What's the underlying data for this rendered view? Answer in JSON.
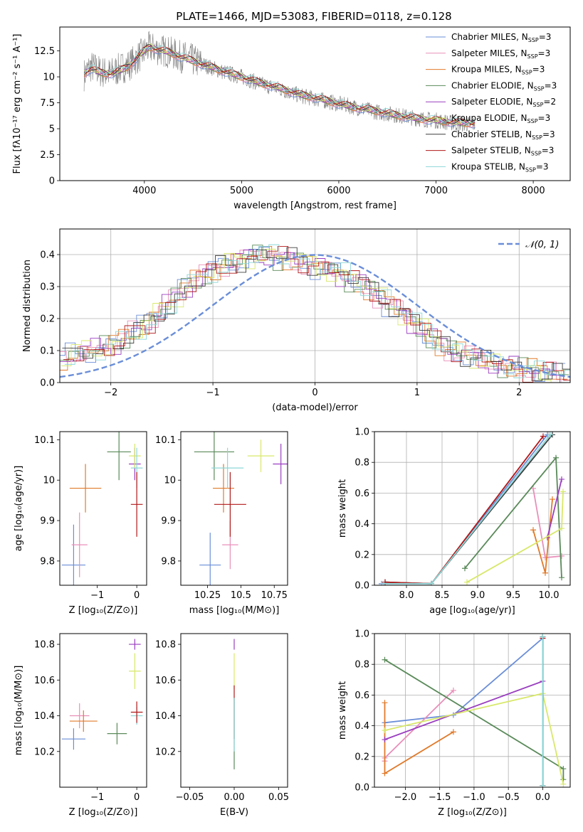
{
  "figure_title": "PLATE=1466, MJD=53083, FIBERID=0118, z=0.128",
  "colors": {
    "series": [
      "#6a8ed8",
      "#e88fb9",
      "#e07a2a",
      "#5a8a5a",
      "#9a3fbf",
      "#d8e86a",
      "#3c3c3c",
      "#b01818",
      "#8ed6d6"
    ],
    "data": "#808080",
    "normal": "#6a8ed8",
    "grid": "#b0b0b0"
  },
  "chart_data": [
    {
      "type": "line",
      "title": "PLATE=1466, MJD=53083, FIBERID=0118, z=0.128",
      "xlabel": "wavelength [Angstrom, rest frame]",
      "ylabel": "Flux [fλ10⁻¹⁷ erg cm⁻² s⁻¹ A⁻¹]",
      "xlim": [
        3130,
        8380
      ],
      "ylim": [
        0,
        14.8
      ],
      "xticks": [
        4000,
        5000,
        6000,
        7000,
        8000
      ],
      "yticks": [
        0.0,
        2.5,
        5.0,
        7.5,
        10.0,
        12.5
      ],
      "grid": false,
      "legend_position": "top-right",
      "legend": [
        {
          "name": "Chabrier MILES, N",
          "sub": "SSP",
          "suffix": "=3"
        },
        {
          "name": "Salpeter MILES, N",
          "sub": "SSP",
          "suffix": "=3"
        },
        {
          "name": "Kroupa MILES, N",
          "sub": "SSP",
          "suffix": "=3"
        },
        {
          "name": "Chabrier ELODIE, N",
          "sub": "SSP",
          "suffix": "=3"
        },
        {
          "name": "Salpeter ELODIE, N",
          "sub": "SSP",
          "suffix": "=2"
        },
        {
          "name": "Kroupa ELODIE, N",
          "sub": "SSP",
          "suffix": "=3"
        },
        {
          "name": "Chabrier STELIB, N",
          "sub": "SSP",
          "suffix": "=3"
        },
        {
          "name": "Salpeter STELIB, N",
          "sub": "SSP",
          "suffix": "=3"
        },
        {
          "name": "Kroupa STELIB, N",
          "sub": "SSP",
          "suffix": "=3"
        }
      ],
      "data_spectrum": {
        "x": [
          3380,
          3450,
          3550,
          3650,
          3750,
          3850,
          3950,
          4050,
          4150,
          4250,
          4350,
          4450,
          4600,
          4800,
          5000,
          5200,
          5400,
          5600,
          5800,
          6000,
          6200,
          6400,
          6600,
          6800,
          7000,
          7200,
          7400
        ],
        "y": [
          10.2,
          11.0,
          10.5,
          10.3,
          10.8,
          11.2,
          12.0,
          12.8,
          12.6,
          12.4,
          12.0,
          11.8,
          11.2,
          10.5,
          10.0,
          9.3,
          8.8,
          8.2,
          7.8,
          7.4,
          7.0,
          6.6,
          6.3,
          6.0,
          5.8,
          5.5,
          5.4
        ]
      },
      "model_spectrum": {
        "x": [
          3380,
          3450,
          3550,
          3650,
          3750,
          3850,
          3950,
          4050,
          4150,
          4250,
          4350,
          4450,
          4600,
          4800,
          5000,
          5200,
          5400,
          5600,
          5800,
          6000,
          6200,
          6400,
          6600,
          6800,
          7000,
          7200,
          7400
        ],
        "y": [
          10.3,
          10.8,
          10.4,
          10.3,
          10.6,
          11.1,
          12.1,
          12.9,
          12.6,
          12.4,
          12.0,
          11.7,
          11.2,
          10.6,
          10.0,
          9.4,
          8.9,
          8.3,
          7.9,
          7.4,
          7.0,
          6.7,
          6.3,
          6.0,
          5.8,
          5.6,
          5.5
        ]
      }
    },
    {
      "type": "area",
      "xlabel": "(data-model)/error",
      "ylabel": "Normed distribution",
      "xlim": [
        -2.5,
        2.5
      ],
      "ylim": [
        0,
        0.48
      ],
      "xticks": [
        -2,
        -1,
        0,
        1,
        2
      ],
      "yticks": [
        0.0,
        0.1,
        0.2,
        0.3,
        0.4
      ],
      "grid": true,
      "legend_position": "top-right",
      "legend": [
        "𝒩(0, 1)"
      ],
      "bins": [
        -2.5,
        -2.4,
        -2.3,
        -2.2,
        -2.1,
        -2.0,
        -1.9,
        -1.8,
        -1.7,
        -1.6,
        -1.5,
        -1.4,
        -1.3,
        -1.2,
        -1.1,
        -1.0,
        -0.9,
        -0.8,
        -0.7,
        -0.6,
        -0.5,
        -0.4,
        -0.3,
        -0.2,
        -0.1,
        0.0,
        0.1,
        0.2,
        0.3,
        0.4,
        0.5,
        0.6,
        0.7,
        0.8,
        0.9,
        1.0,
        1.1,
        1.2,
        1.3,
        1.4,
        1.5,
        1.6,
        1.7,
        1.8,
        1.9,
        2.0,
        2.1,
        2.2,
        2.3,
        2.4
      ],
      "histogram_mean": [
        0.07,
        0.09,
        0.1,
        0.1,
        0.11,
        0.12,
        0.14,
        0.16,
        0.18,
        0.21,
        0.24,
        0.27,
        0.3,
        0.32,
        0.34,
        0.36,
        0.37,
        0.38,
        0.39,
        0.4,
        0.4,
        0.39,
        0.39,
        0.38,
        0.37,
        0.36,
        0.35,
        0.34,
        0.32,
        0.31,
        0.29,
        0.27,
        0.24,
        0.22,
        0.19,
        0.17,
        0.14,
        0.12,
        0.1,
        0.09,
        0.08,
        0.07,
        0.06,
        0.05,
        0.05,
        0.04,
        0.04,
        0.03,
        0.03,
        0.02
      ],
      "normal_curve": {
        "name": "𝒩(0, 1)",
        "mu": 0,
        "sigma": 1
      }
    },
    {
      "type": "scatter",
      "xlabel": "Z [log₁₀(Z/Z⊙)]",
      "ylabel": "age  [log₁₀(age/yr)]",
      "xlim": [
        -1.95,
        0.25
      ],
      "ylim": [
        9.74,
        10.12
      ],
      "xticks": [
        -1,
        0
      ],
      "yticks": [
        9.8,
        9.9,
        10.0,
        10.1
      ],
      "points": [
        {
          "x": -1.6,
          "y": 9.79,
          "xerr": 0.3,
          "yerr": 0.1,
          "color": 0
        },
        {
          "x": -1.45,
          "y": 9.84,
          "xerr": 0.2,
          "yerr": 0.08,
          "color": 1
        },
        {
          "x": -1.3,
          "y": 9.98,
          "xerr": 0.4,
          "yerr": 0.06,
          "color": 2
        },
        {
          "x": -0.45,
          "y": 10.07,
          "xerr": 0.3,
          "yerr": 0.07,
          "color": 3
        },
        {
          "x": -0.05,
          "y": 10.04,
          "xerr": 0.15,
          "yerr": 0.04,
          "color": 4
        },
        {
          "x": -0.05,
          "y": 10.06,
          "xerr": 0.15,
          "yerr": 0.03,
          "color": 5
        },
        {
          "x": 0.0,
          "y": 10.03,
          "xerr": 0.15,
          "yerr": 0.05,
          "color": 8
        },
        {
          "x": 0.0,
          "y": 9.94,
          "xerr": 0.15,
          "yerr": 0.08,
          "color": 7
        }
      ]
    },
    {
      "type": "scatter",
      "xlabel": "mass [log₁₀(M/M⊙)]",
      "xlim": [
        10.05,
        10.85
      ],
      "ylim": [
        9.74,
        10.12
      ],
      "xticks": [
        10.25,
        10.5,
        10.75
      ],
      "yticks": [
        9.8,
        9.9,
        10.0,
        10.1
      ],
      "points": [
        {
          "x": 10.27,
          "y": 9.79,
          "xerr": 0.08,
          "yerr": 0.08,
          "color": 0
        },
        {
          "x": 10.42,
          "y": 9.84,
          "xerr": 0.06,
          "yerr": 0.06,
          "color": 1
        },
        {
          "x": 10.37,
          "y": 9.98,
          "xerr": 0.08,
          "yerr": 0.06,
          "color": 2
        },
        {
          "x": 10.3,
          "y": 10.07,
          "xerr": 0.15,
          "yerr": 0.07,
          "color": 3
        },
        {
          "x": 10.8,
          "y": 10.04,
          "xerr": 0.06,
          "yerr": 0.05,
          "color": 4
        },
        {
          "x": 10.65,
          "y": 10.06,
          "xerr": 0.1,
          "yerr": 0.04,
          "color": 5
        },
        {
          "x": 10.4,
          "y": 10.03,
          "xerr": 0.12,
          "yerr": 0.05,
          "color": 8
        },
        {
          "x": 10.42,
          "y": 9.94,
          "xerr": 0.12,
          "yerr": 0.08,
          "color": 7
        }
      ]
    },
    {
      "type": "line",
      "xlabel": "age  [log₁₀(age/yr)]",
      "ylabel": "mass weight",
      "xlim": [
        7.55,
        10.3
      ],
      "ylim": [
        0,
        1.0
      ],
      "xticks": [
        8.0,
        8.5,
        9.0,
        9.5,
        10.0
      ],
      "yticks": [
        0.0,
        0.2,
        0.4,
        0.6,
        0.8,
        1.0
      ],
      "grid": true,
      "series": [
        {
          "color": 0,
          "x": [
            7.65,
            8.35,
            9.98
          ],
          "y": [
            0.01,
            0.01,
            0.98
          ]
        },
        {
          "color": 1,
          "x": [
            9.78,
            9.95,
            10.18
          ],
          "y": [
            0.63,
            0.18,
            0.19
          ]
        },
        {
          "color": 2,
          "x": [
            9.78,
            9.95,
            10.05
          ],
          "y": [
            0.36,
            0.08,
            0.56
          ]
        },
        {
          "color": 3,
          "x": [
            8.82,
            10.1,
            10.18
          ],
          "y": [
            0.11,
            0.83,
            0.05
          ]
        },
        {
          "color": 4,
          "x": [
            9.98,
            10.18
          ],
          "y": [
            0.31,
            0.69
          ]
        },
        {
          "color": 5,
          "x": [
            8.85,
            10.18,
            10.2
          ],
          "y": [
            0.02,
            0.37,
            0.61
          ]
        },
        {
          "color": 6,
          "x": [
            7.7,
            8.35,
            10.05
          ],
          "y": [
            0.02,
            0.01,
            0.98
          ]
        },
        {
          "color": 7,
          "x": [
            7.7,
            8.35,
            9.92
          ],
          "y": [
            0.02,
            0.01,
            0.97
          ]
        },
        {
          "color": 8,
          "x": [
            7.68,
            8.35,
            10.02
          ],
          "y": [
            0.01,
            0.01,
            0.98
          ]
        }
      ]
    },
    {
      "type": "scatter",
      "xlabel": "Z [log₁₀(Z/Z⊙)]",
      "ylabel": "mass [log₁₀(M/M⊙)]",
      "xlim": [
        -1.95,
        0.25
      ],
      "ylim": [
        10.0,
        10.86
      ],
      "xticks": [
        -1,
        0
      ],
      "yticks": [
        10.2,
        10.4,
        10.6,
        10.8
      ],
      "points": [
        {
          "x": -1.6,
          "y": 10.27,
          "xerr": 0.3,
          "yerr": 0.06,
          "color": 0
        },
        {
          "x": -1.45,
          "y": 10.4,
          "xerr": 0.25,
          "yerr": 0.07,
          "color": 1
        },
        {
          "x": -1.35,
          "y": 10.37,
          "xerr": 0.35,
          "yerr": 0.06,
          "color": 2
        },
        {
          "x": -0.5,
          "y": 10.3,
          "xerr": 0.25,
          "yerr": 0.06,
          "color": 3
        },
        {
          "x": -0.05,
          "y": 10.8,
          "xerr": 0.15,
          "yerr": 0.03,
          "color": 4
        },
        {
          "x": -0.05,
          "y": 10.65,
          "xerr": 0.15,
          "yerr": 0.1,
          "color": 5
        },
        {
          "x": 0.0,
          "y": 10.4,
          "xerr": 0.15,
          "yerr": 0.05,
          "color": 8
        },
        {
          "x": 0.0,
          "y": 10.42,
          "xerr": 0.15,
          "yerr": 0.06,
          "color": 7
        }
      ]
    },
    {
      "type": "scatter",
      "xlabel": "E(B-V)",
      "xlim": [
        -0.06,
        0.06
      ],
      "ylim": [
        10.0,
        10.86
      ],
      "xticks": [
        -0.05,
        0.0,
        0.05
      ],
      "yticks": [
        10.2,
        10.4,
        10.6,
        10.8
      ],
      "points": [
        {
          "x": 0.0,
          "y": 10.8,
          "yerr": 0.03,
          "color": 4
        },
        {
          "x": 0.0,
          "y": 10.65,
          "yerr": 0.1,
          "color": 5
        },
        {
          "x": 0.0,
          "y": 10.42,
          "yerr": 0.15,
          "color": 7
        },
        {
          "x": 0.0,
          "y": 10.3,
          "yerr": 0.2,
          "color": 3
        },
        {
          "x": 0.0,
          "y": 10.35,
          "yerr": 0.15,
          "color": 8
        }
      ]
    },
    {
      "type": "line",
      "xlabel": "Z [log₁₀(Z/Z⊙)]",
      "ylabel": "mass weight",
      "xlim": [
        -2.45,
        0.4
      ],
      "ylim": [
        0,
        1.0
      ],
      "xticks": [
        -2.0,
        -1.5,
        -1.0,
        -0.5,
        0.0
      ],
      "yticks": [
        0.0,
        0.2,
        0.4,
        0.6,
        0.8,
        1.0
      ],
      "grid": true,
      "series": [
        {
          "color": 0,
          "x": [
            -2.3,
            -1.3,
            0.0,
            0.0
          ],
          "y": [
            0.42,
            0.47,
            0.97,
            0.01
          ]
        },
        {
          "color": 1,
          "x": [
            -2.3,
            -2.3,
            -1.3
          ],
          "y": [
            0.17,
            0.19,
            0.63
          ]
        },
        {
          "color": 2,
          "x": [
            -2.3,
            -2.3,
            -1.3
          ],
          "y": [
            0.55,
            0.09,
            0.36
          ]
        },
        {
          "color": 3,
          "x": [
            -2.3,
            0.3,
            0.3
          ],
          "y": [
            0.83,
            0.12,
            0.05
          ]
        },
        {
          "color": 4,
          "x": [
            -2.3,
            0.0
          ],
          "y": [
            0.31,
            0.69
          ]
        },
        {
          "color": 5,
          "x": [
            -2.3,
            0.0,
            0.3
          ],
          "y": [
            0.37,
            0.61,
            0.02
          ]
        },
        {
          "color": 6,
          "x": [
            0.0,
            0.0
          ],
          "y": [
            0.01,
            0.98
          ]
        },
        {
          "color": 7,
          "x": [
            0.0,
            0.0
          ],
          "y": [
            0.01,
            0.97
          ]
        },
        {
          "color": 8,
          "x": [
            0.0,
            0.0
          ],
          "y": [
            0.01,
            0.98
          ]
        }
      ]
    }
  ]
}
